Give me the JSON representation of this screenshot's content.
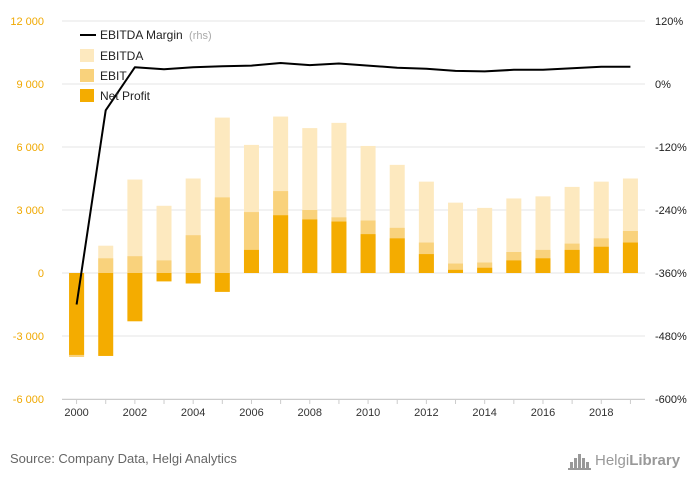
{
  "chart_data": {
    "type": "bar",
    "categories": [
      "2000",
      "2001",
      "2002",
      "2003",
      "2004",
      "2005",
      "2006",
      "2007",
      "2008",
      "2009",
      "2010",
      "2011",
      "2012",
      "2013",
      "2014",
      "2015",
      "2016",
      "2017",
      "2018",
      "2019"
    ],
    "x_tick_labels": [
      "2000",
      "2002",
      "2004",
      "2006",
      "2008",
      "2010",
      "2012",
      "2014",
      "2016",
      "2018"
    ],
    "series": [
      {
        "name": "EBITDA",
        "kind": "bar",
        "axis": "left",
        "color": "#fde9bf",
        "values": [
          -4000,
          1300,
          4450,
          3200,
          4500,
          7400,
          6100,
          7450,
          6900,
          7150,
          6050,
          5150,
          4350,
          3350,
          3100,
          3550,
          3650,
          4100,
          4350,
          4500
        ]
      },
      {
        "name": "EBIT",
        "kind": "bar",
        "axis": "left",
        "color": "#f9d27c",
        "values": [
          -4000,
          700,
          800,
          600,
          1800,
          3600,
          2900,
          3900,
          3000,
          2650,
          2500,
          2150,
          1450,
          450,
          500,
          1000,
          1100,
          1400,
          1650,
          2000
        ]
      },
      {
        "name": "Net Profit",
        "kind": "bar",
        "axis": "left",
        "color": "#f4ac00",
        "values": [
          -3900,
          -3950,
          -2300,
          -400,
          -500,
          -900,
          1100,
          2750,
          2550,
          2450,
          1850,
          1650,
          900,
          150,
          250,
          600,
          700,
          1100,
          1250,
          1450
        ]
      },
      {
        "name": "EBITDA Margin",
        "kind": "line",
        "axis": "right",
        "color": "#000000",
        "values": [
          -420,
          -50,
          32,
          28,
          32,
          34,
          35,
          40,
          36,
          39,
          35,
          31,
          29,
          25,
          24,
          27,
          27,
          30,
          33,
          33
        ]
      }
    ],
    "legend": [
      {
        "label": "EBITDA Margin",
        "suffix": "(rhs)"
      },
      {
        "label": "EBITDA"
      },
      {
        "label": "EBIT"
      },
      {
        "label": "Net Profit"
      }
    ],
    "left_ticks": [
      "12 000",
      "9 000",
      "6 000",
      "3 000",
      "0",
      "-3 000",
      "-6 000"
    ],
    "right_ticks": [
      "120%",
      "0%",
      "-120%",
      "-240%",
      "-360%",
      "-480%",
      "-600%"
    ],
    "ylim_left": [
      -6000,
      12000
    ],
    "ylim_right": [
      -600,
      120
    ],
    "grid": true,
    "legend_placement": "top-left"
  },
  "footer": {
    "source": "Source: Company Data, Helgi Analytics",
    "logo_part1": "Helgi",
    "logo_part2": "Library"
  }
}
